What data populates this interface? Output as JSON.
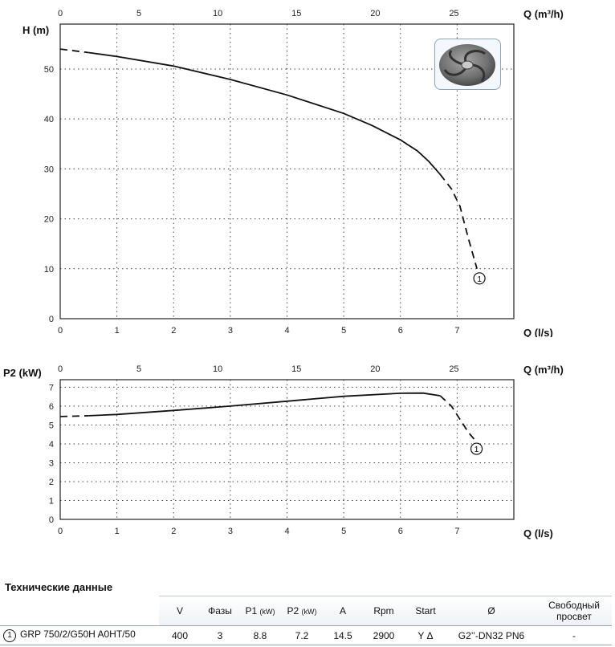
{
  "chart_data": [
    {
      "type": "line",
      "ylabel": "H (m)",
      "xlabel": "Q (l/s)",
      "x2label": "Q (m³/h)",
      "xlim": [
        0,
        8
      ],
      "ylim": [
        0,
        59
      ],
      "x2lim": [
        0,
        28.8
      ],
      "x_ticks": [
        0,
        1,
        2,
        3,
        4,
        5,
        6,
        7
      ],
      "x2_ticks": [
        0,
        5,
        10,
        15,
        20,
        25
      ],
      "y_ticks": [
        0,
        10,
        20,
        30,
        40,
        50
      ],
      "grid": true,
      "series": [
        {
          "marker": "1",
          "solid": [
            [
              0.5,
              53.3
            ],
            [
              1,
              52.5
            ],
            [
              2,
              50.6
            ],
            [
              3,
              47.9
            ],
            [
              4,
              44.8
            ],
            [
              5,
              41.1
            ],
            [
              5.5,
              38.7
            ],
            [
              6,
              35.8
            ],
            [
              6.3,
              33.6
            ],
            [
              6.5,
              31.5
            ],
            [
              6.7,
              28.9
            ]
          ],
          "dashed_start": [
            [
              0,
              54.0
            ],
            [
              0.5,
              53.3
            ]
          ],
          "dashed_end": [
            [
              6.7,
              28.9
            ],
            [
              6.9,
              26.0
            ],
            [
              7.05,
              22.5
            ],
            [
              7.2,
              16.0
            ],
            [
              7.35,
              10.0
            ]
          ]
        }
      ]
    },
    {
      "type": "line",
      "ylabel": "P2 (kW)",
      "xlabel": "Q (l/s)",
      "x2label": "Q (m³/h)",
      "xlim": [
        0,
        8
      ],
      "ylim": [
        0,
        7.4
      ],
      "x2lim": [
        0,
        28.8
      ],
      "x_ticks": [
        0,
        1,
        2,
        3,
        4,
        5,
        6,
        7
      ],
      "x2_ticks": [
        0,
        5,
        10,
        15,
        20,
        25
      ],
      "y_ticks": [
        0,
        1,
        2,
        3,
        4,
        5,
        6,
        7
      ],
      "grid": true,
      "series": [
        {
          "marker": "1",
          "solid": [
            [
              0.5,
              5.49
            ],
            [
              1,
              5.56
            ],
            [
              2,
              5.77
            ],
            [
              3,
              6.0
            ],
            [
              4,
              6.26
            ],
            [
              5,
              6.52
            ],
            [
              6,
              6.68
            ],
            [
              6.4,
              6.69
            ],
            [
              6.7,
              6.55
            ]
          ],
          "dashed_start": [
            [
              0,
              5.45
            ],
            [
              0.5,
              5.49
            ]
          ],
          "dashed_end": [
            [
              6.7,
              6.55
            ],
            [
              6.9,
              6.0
            ],
            [
              7.05,
              5.3
            ],
            [
              7.2,
              4.6
            ],
            [
              7.3,
              4.25
            ]
          ]
        }
      ]
    }
  ],
  "specs": {
    "title": "Технические данные",
    "headers": [
      "V",
      "Фазы",
      "P1",
      "P2",
      "A",
      "Rpm",
      "Start",
      "Ø",
      "Свободный просвет"
    ],
    "header_units": [
      "",
      "",
      "(kW)",
      "(kW)",
      "",
      "",
      "",
      "",
      ""
    ],
    "row": {
      "marker": "1",
      "model": "GRP 750/2/G50H A0HT/50",
      "values": [
        "400",
        "3",
        "8.8",
        "7.2",
        "14.5",
        "2900",
        "Y Δ",
        "G2’’-DN32 PN6",
        "-"
      ]
    }
  },
  "image": {
    "icon": "impeller-icon"
  }
}
